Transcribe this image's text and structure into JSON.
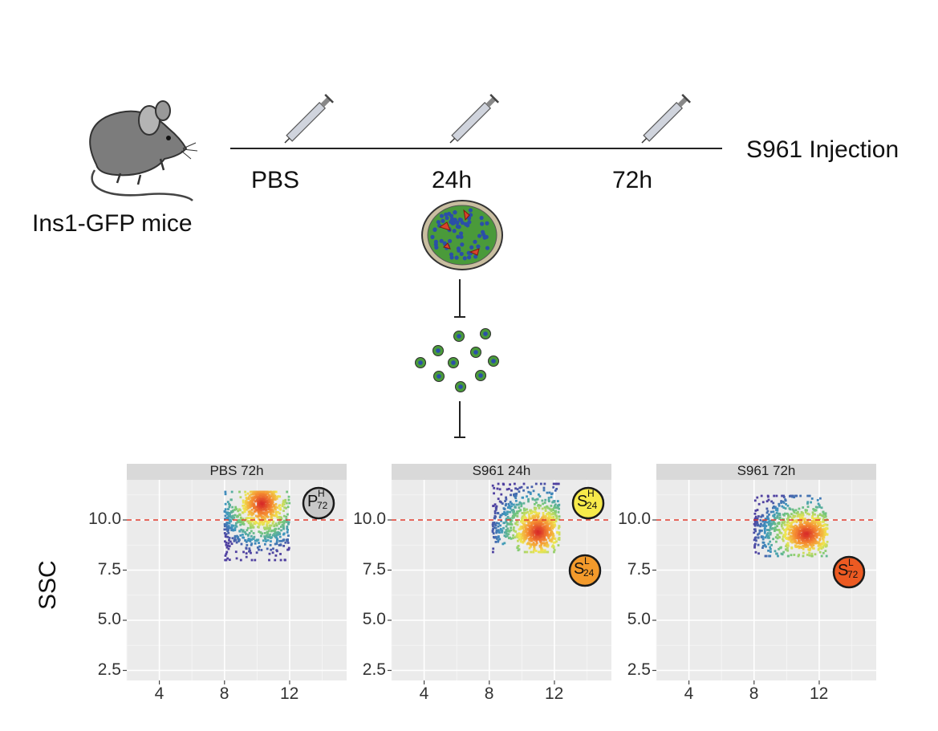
{
  "figure": {
    "mouse_label": "Ins1-GFP mice",
    "injection_label": "S961 Injection",
    "timepoints": [
      "PBS",
      "24h",
      "72h"
    ],
    "y_axis_label": "SSC",
    "colors": {
      "threshold": "#e0392b",
      "panel_bg": "#ebebeb",
      "strip_bg": "#d9d9d9",
      "cell_green": "#4a9a3a",
      "cell_blue": "#2b4fa8"
    }
  },
  "chart_data": [
    {
      "type": "scatter",
      "title": "PBS 72h",
      "ylabel": "SSC",
      "xticks": [
        "4",
        "8",
        "12"
      ],
      "yticks": [
        "2.5",
        "5.0",
        "7.5",
        "10.0"
      ],
      "xlim": [
        2,
        15.5
      ],
      "ylim": [
        2,
        12
      ],
      "threshold_y": 10.0,
      "cluster": {
        "x_range": [
          8,
          12
        ],
        "y_range": [
          8.0,
          11.4
        ],
        "peak": [
          10.3,
          10.8
        ]
      },
      "badge": {
        "base": "P",
        "sup": "H",
        "sub": "72",
        "color": "#c8c8c8"
      }
    },
    {
      "type": "scatter",
      "title": "S961 24h",
      "ylabel": "SSC",
      "xticks": [
        "4",
        "8",
        "12"
      ],
      "yticks": [
        "2.5",
        "5.0",
        "7.5",
        "10.0"
      ],
      "xlim": [
        2,
        15.5
      ],
      "ylim": [
        2,
        12
      ],
      "threshold_y": 10.0,
      "cluster": {
        "x_range": [
          8.2,
          12.3
        ],
        "y_range": [
          8.4,
          11.8
        ],
        "peak": [
          11.0,
          9.4
        ]
      },
      "badge_high": {
        "base": "S",
        "sup": "H",
        "sub": "24",
        "color": "#f7ea4a"
      },
      "badge_low": {
        "base": "S",
        "sup": "L",
        "sub": "24",
        "color": "#f39a2b"
      }
    },
    {
      "type": "scatter",
      "title": "S961 72h",
      "ylabel": "SSC",
      "xticks": [
        "4",
        "8",
        "12"
      ],
      "yticks": [
        "2.5",
        "5.0",
        "7.5",
        "10.0"
      ],
      "xlim": [
        2,
        15.5
      ],
      "ylim": [
        2,
        12
      ],
      "threshold_y": 10.0,
      "cluster": {
        "x_range": [
          8.0,
          12.5
        ],
        "y_range": [
          8.2,
          11.2
        ],
        "peak": [
          11.2,
          9.3
        ]
      },
      "badge": {
        "base": "S",
        "sup": "L",
        "sub": "72",
        "color": "#ec5a22"
      }
    }
  ]
}
